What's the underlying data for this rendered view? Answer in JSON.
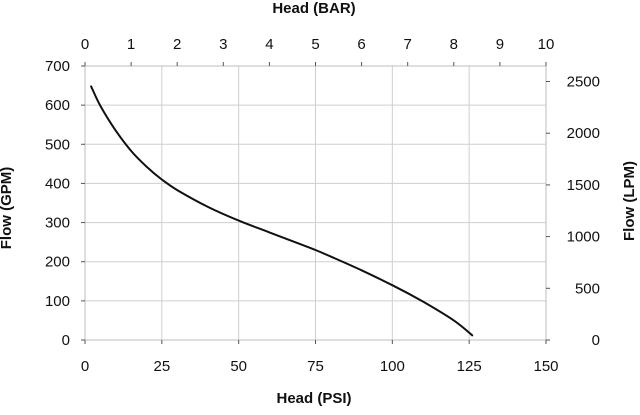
{
  "chart_data": {
    "type": "line",
    "title": "",
    "xlabel": "Head (PSI)",
    "ylabel": "Flow (GPM)",
    "x2label": "Head (BAR)",
    "y2label": "Flow (LPM)",
    "xlim": [
      0,
      150
    ],
    "ylim": [
      0,
      700
    ],
    "x2lim": [
      0,
      10
    ],
    "y2lim": [
      0,
      2650
    ],
    "xticks": [
      "0",
      "25",
      "50",
      "75",
      "100",
      "125",
      "150"
    ],
    "yticks": [
      "0",
      "100",
      "200",
      "300",
      "400",
      "500",
      "600",
      "700"
    ],
    "x2ticks": [
      "0",
      "1",
      "2",
      "3",
      "4",
      "5",
      "6",
      "7",
      "8",
      "9",
      "10"
    ],
    "y2ticks": [
      "0",
      "500",
      "1000",
      "1500",
      "2000",
      "2500"
    ],
    "grid": true,
    "series": [
      {
        "x": [
          2,
          5,
          10,
          15,
          20,
          25,
          30,
          40,
          50,
          60,
          70,
          75,
          80,
          90,
          100,
          110,
          120,
          126
        ],
        "y": [
          648,
          598,
          535,
          483,
          443,
          410,
          383,
          340,
          305,
          275,
          245,
          230,
          213,
          178,
          140,
          98,
          50,
          12
        ]
      }
    ],
    "line_color": "#111111",
    "grid_color": "#cfcfcf"
  }
}
